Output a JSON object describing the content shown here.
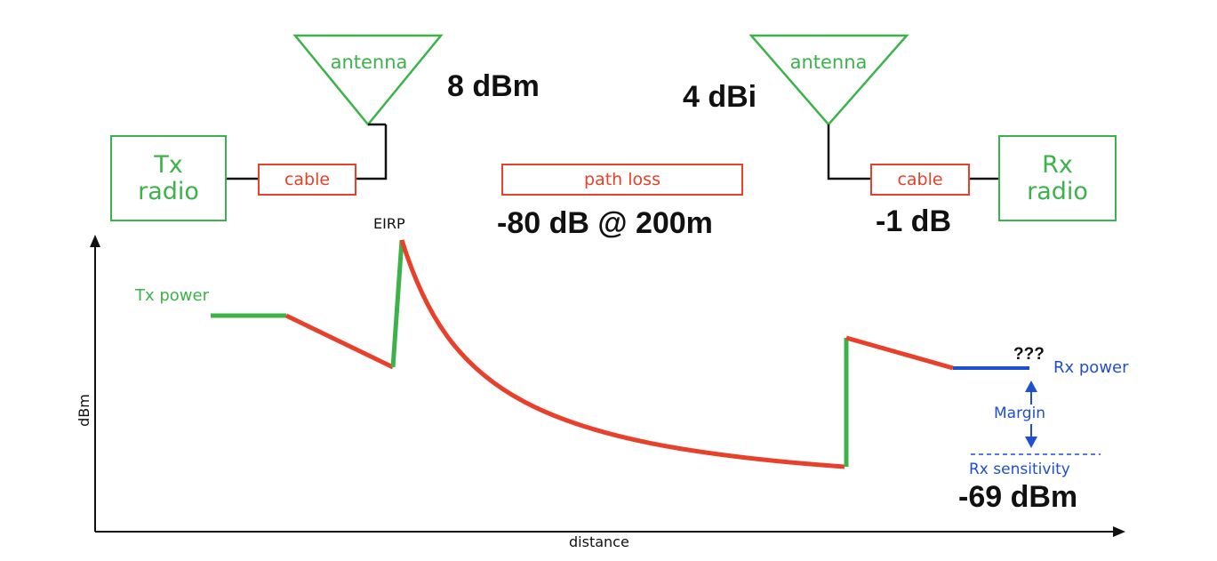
{
  "tx": {
    "radio_label": "Tx\nradio",
    "cable_label": "cable",
    "antenna_label": "antenna",
    "antenna_value": "8 dBm"
  },
  "rx": {
    "radio_label": "Rx\nradio",
    "cable_label": "cable",
    "antenna_label": "antenna",
    "antenna_value": "4 dBi",
    "cable_value": "-1 dB"
  },
  "path": {
    "label": "path loss",
    "value": "-80 dB @ 200m"
  },
  "graph": {
    "eirp_label": "EIRP",
    "tx_power_label": "Tx power",
    "rx_power_label": "Rx power",
    "unknown_label": "???",
    "margin_label": "Margin",
    "rx_sensitivity_label": "Rx sensitivity",
    "rx_sensitivity_value": "-69 dBm",
    "y_axis_label": "dBm",
    "x_axis_label": "distance"
  },
  "colors": {
    "gain": "#3cb34a",
    "loss": "#e8402a",
    "receiver": "#1f4fd1",
    "text": "#111111"
  }
}
